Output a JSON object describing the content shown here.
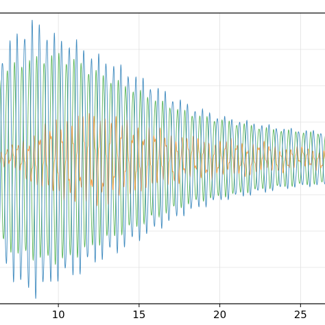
{
  "chart_data": {
    "type": "line",
    "title": "",
    "xlabel": "",
    "ylabel": "",
    "xlim": [
      6.3,
      26.6
    ],
    "ylim": [
      -1.0,
      1.0
    ],
    "xticks": [
      10,
      15,
      20,
      25
    ],
    "xtick_labels": [
      "10",
      "15",
      "20",
      "25"
    ],
    "grid": true,
    "legend": "none",
    "series": [
      {
        "color": "#1f77b4",
        "style": "decaying oscillation, ~2.2 cycles per unit",
        "x": [
          6.3,
          7,
          8,
          8.5,
          9,
          10,
          11,
          11.5,
          12,
          13,
          14,
          15,
          16,
          17,
          18,
          19,
          20,
          21,
          22,
          23,
          24,
          25,
          26,
          26.6
        ],
        "amplitude": [
          0.65,
          0.78,
          0.88,
          0.92,
          0.88,
          0.8,
          0.78,
          0.75,
          0.7,
          0.66,
          0.6,
          0.54,
          0.48,
          0.42,
          0.36,
          0.32,
          0.28,
          0.26,
          0.24,
          0.22,
          0.2,
          0.19,
          0.18,
          0.18
        ]
      },
      {
        "color": "#2ca02c",
        "style": "decaying oscillation, ~2.2 cycles per unit",
        "x": [
          6.3,
          7,
          8,
          9,
          10,
          11,
          12,
          13,
          14,
          15,
          16,
          17,
          18,
          19,
          20,
          21,
          22,
          23,
          24,
          25,
          26,
          26.6
        ],
        "amplitude": [
          0.55,
          0.62,
          0.66,
          0.68,
          0.7,
          0.66,
          0.6,
          0.55,
          0.5,
          0.45,
          0.4,
          0.35,
          0.31,
          0.28,
          0.26,
          0.24,
          0.22,
          0.2,
          0.19,
          0.18,
          0.17,
          0.17
        ]
      },
      {
        "color": "#ff7f0e",
        "style": "small irregular oscillation around zero",
        "x": [
          6.3,
          7,
          8,
          9,
          10,
          11,
          12,
          13,
          14,
          15,
          16,
          17,
          18,
          19,
          20,
          21,
          22,
          23,
          24,
          25,
          26,
          26.6
        ],
        "amplitude": [
          0.04,
          0.05,
          0.1,
          0.16,
          0.2,
          0.22,
          0.24,
          0.23,
          0.2,
          0.17,
          0.15,
          0.13,
          0.11,
          0.1,
          0.09,
          0.09,
          0.08,
          0.07,
          0.06,
          0.05,
          0.05,
          0.05
        ]
      }
    ]
  }
}
